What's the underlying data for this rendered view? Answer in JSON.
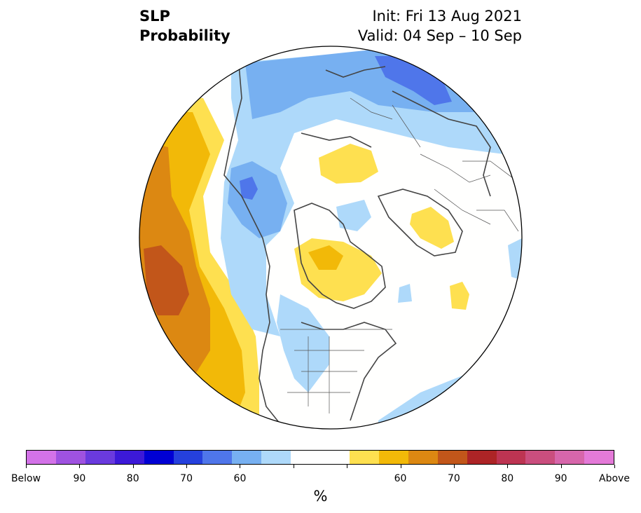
{
  "title": {
    "line1": "SLP",
    "line2": "Probability",
    "init": "Init: Fri 13 Aug 2021",
    "valid": "Valid: 04 Sep – 10 Sep"
  },
  "colorbar": {
    "colors": [
      "#d372e8",
      "#9f52e0",
      "#6a3ade",
      "#3c19d8",
      "#0000d4",
      "#2540dd",
      "#4f76ea",
      "#77b0f1",
      "#aed9fa",
      "#ffffff",
      "#ffffff",
      "#fee050",
      "#f2b908",
      "#dc8812",
      "#c2561a",
      "#ad2426",
      "#bd3452",
      "#ca4e7e",
      "#d766ab",
      "#e47ad8"
    ],
    "tick_labels": [
      "Below",
      "90",
      "80",
      "70",
      "60",
      "",
      "",
      "60",
      "70",
      "80",
      "90",
      "Above"
    ],
    "unit": "%"
  },
  "map": {
    "projection": "north polar stereographic",
    "background": "#fffffe",
    "below_levels": {
      "60": "#aed9fa",
      "70": "#77b0f1",
      "80": "#4f76ea"
    },
    "above_levels": {
      "60": "#fee050",
      "70": "#f2b908",
      "80": "#dc8812",
      "90": "#c2561a"
    }
  }
}
